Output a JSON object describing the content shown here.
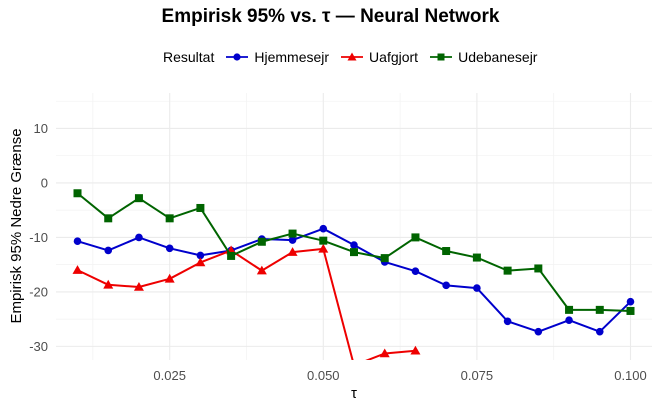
{
  "chart_data": {
    "type": "line",
    "title": "Empirisk 95% vs. τ — Neural Network",
    "xlabel": "τ",
    "ylabel": "Empirisk 95% Nedre Grænse",
    "legend_title": "Resultat",
    "legend_position": "top",
    "grid": true,
    "xlim": [
      0.0065,
      0.1035
    ],
    "ylim": [
      -32.5,
      16.5
    ],
    "x_ticks": [
      0.025,
      0.05,
      0.075,
      0.1
    ],
    "x_tick_labels": [
      "0.025",
      "0.050",
      "0.075",
      "0.100"
    ],
    "y_ticks": [
      10,
      0,
      -10,
      -20,
      -30
    ],
    "y_tick_labels": [
      "10",
      "0",
      "-10",
      "-20",
      "-30"
    ],
    "series": [
      {
        "name": "Hjemmesejr",
        "color": "#0000cc",
        "marker": "circle",
        "x": [
          0.01,
          0.015,
          0.02,
          0.025,
          0.03,
          0.035,
          0.04,
          0.045,
          0.05,
          0.055,
          0.06,
          0.065,
          0.07,
          0.075,
          0.08,
          0.085,
          0.09,
          0.095,
          0.1
        ],
        "y": [
          -10.7,
          -12.4,
          -10.0,
          -12.0,
          -13.3,
          -12.4,
          -10.3,
          -10.5,
          -8.4,
          -11.4,
          -14.5,
          -16.2,
          -18.8,
          -19.3,
          -25.4,
          -27.3,
          -25.2,
          -27.3,
          -21.8
        ]
      },
      {
        "name": "Uafgjort",
        "color": "#ee0000",
        "marker": "triangle",
        "x": [
          0.01,
          0.015,
          0.02,
          0.025,
          0.03,
          0.035,
          0.04,
          0.045,
          0.05,
          0.055,
          0.06,
          0.065
        ],
        "y": [
          -16.0,
          -18.7,
          -19.1,
          -17.6,
          -14.6,
          -12.4,
          -16.1,
          -12.7,
          -12.1,
          -33.5,
          -31.3,
          -30.8
        ]
      },
      {
        "name": "Udebanesejr",
        "color": "#006400",
        "marker": "square",
        "x": [
          0.01,
          0.015,
          0.02,
          0.025,
          0.03,
          0.035,
          0.04,
          0.045,
          0.05,
          0.055,
          0.06,
          0.065,
          0.07,
          0.075,
          0.08,
          0.085,
          0.09,
          0.095,
          0.1
        ],
        "y": [
          -1.9,
          -6.5,
          -2.8,
          -6.5,
          -4.6,
          -13.4,
          -10.8,
          -9.3,
          -10.6,
          -12.7,
          -13.8,
          -10.0,
          -12.5,
          -13.7,
          -16.1,
          -15.7,
          -23.3,
          -23.3,
          -23.5
        ]
      }
    ]
  }
}
